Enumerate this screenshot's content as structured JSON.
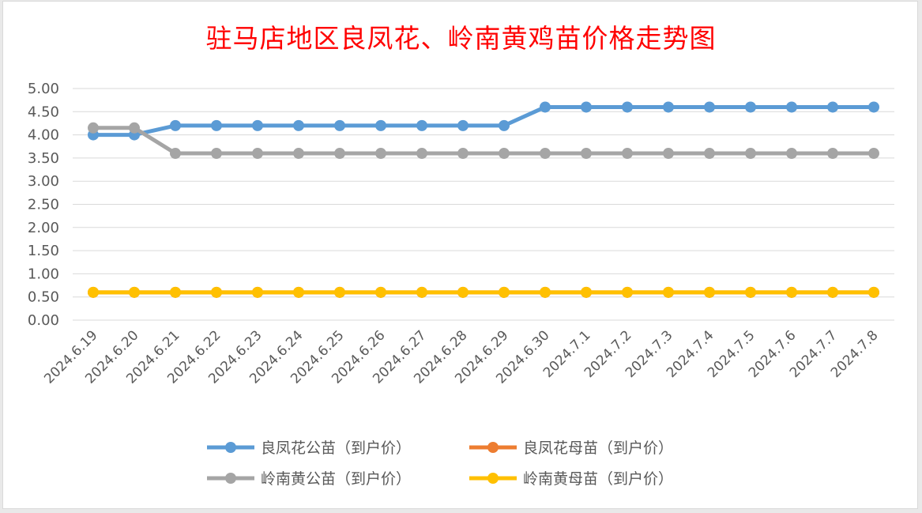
{
  "chart_data": {
    "type": "line",
    "title": "驻马店地区良凤花、岭南黄鸡苗价格走势图",
    "xlabel": "",
    "ylabel": "",
    "ylim": [
      0,
      5
    ],
    "ytick_labels": [
      "0.00",
      "0.50",
      "1.00",
      "1.50",
      "2.00",
      "2.50",
      "3.00",
      "3.50",
      "4.00",
      "4.50",
      "5.00"
    ],
    "grid": true,
    "legend_position": "bottom",
    "categories": [
      "2024.6.19",
      "2024.6.20",
      "2024.6.21",
      "2024.6.22",
      "2024.6.23",
      "2024.6.24",
      "2024.6.25",
      "2024.6.26",
      "2024.6.27",
      "2024.6.28",
      "2024.6.29",
      "2024.6.30",
      "2024.7.1",
      "2024.7.2",
      "2024.7.3",
      "2024.7.4",
      "2024.7.5",
      "2024.7.6",
      "2024.7.7",
      "2024.7.8"
    ],
    "series": [
      {
        "name": "良凤花公苗（到户价）",
        "color": "#5b9bd5",
        "values": [
          4.0,
          4.0,
          4.2,
          4.2,
          4.2,
          4.2,
          4.2,
          4.2,
          4.2,
          4.2,
          4.2,
          4.6,
          4.6,
          4.6,
          4.6,
          4.6,
          4.6,
          4.6,
          4.6,
          4.6
        ]
      },
      {
        "name": "良凤花母苗（到户价）",
        "color": "#ed7d31",
        "values": [
          0.6,
          0.6,
          0.6,
          0.6,
          0.6,
          0.6,
          0.6,
          0.6,
          0.6,
          0.6,
          0.6,
          0.6,
          0.6,
          0.6,
          0.6,
          0.6,
          0.6,
          0.6,
          0.6,
          0.6
        ]
      },
      {
        "name": "岭南黄公苗（到户价）",
        "color": "#a5a5a5",
        "values": [
          4.15,
          4.15,
          3.6,
          3.6,
          3.6,
          3.6,
          3.6,
          3.6,
          3.6,
          3.6,
          3.6,
          3.6,
          3.6,
          3.6,
          3.6,
          3.6,
          3.6,
          3.6,
          3.6,
          3.6
        ]
      },
      {
        "name": "岭南黄母苗（到户价）",
        "color": "#ffc000",
        "values": [
          0.6,
          0.6,
          0.6,
          0.6,
          0.6,
          0.6,
          0.6,
          0.6,
          0.6,
          0.6,
          0.6,
          0.6,
          0.6,
          0.6,
          0.6,
          0.6,
          0.6,
          0.6,
          0.6,
          0.6
        ]
      }
    ]
  }
}
